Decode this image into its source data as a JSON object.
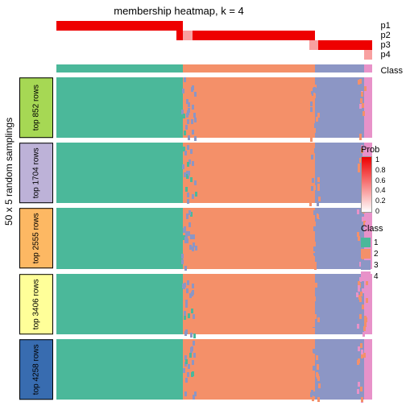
{
  "title": "membership heatmap, k = 4",
  "ylabel": "50 x 5 random samplings",
  "p_labels": [
    "p1",
    "p2",
    "p3",
    "p4"
  ],
  "class_label": "Class",
  "colors": {
    "c1": "#4bb89a",
    "c2": "#f49069",
    "c3": "#8c96c5",
    "c4": "#e892c9",
    "prob_high": "#ee0000",
    "prob_mid": "#f8a0a0",
    "prob_low": "#ffffff",
    "white": "#ffffff"
  },
  "class_bar": [
    {
      "from": 0,
      "to": 0.4,
      "c": "c1"
    },
    {
      "from": 0.4,
      "to": 0.82,
      "c": "c2"
    },
    {
      "from": 0.82,
      "to": 0.975,
      "c": "c3"
    },
    {
      "from": 0.975,
      "to": 1.0,
      "c": "c4"
    }
  ],
  "p_rows": [
    [
      {
        "from": 0,
        "to": 0.4,
        "c": "prob_high"
      }
    ],
    [
      {
        "from": 0.38,
        "to": 0.82,
        "c": "prob_high"
      },
      {
        "from": 0.4,
        "to": 0.43,
        "c": "prob_mid"
      }
    ],
    [
      {
        "from": 0.82,
        "to": 1.0,
        "c": "prob_high"
      },
      {
        "from": 0.8,
        "to": 0.83,
        "c": "prob_mid"
      }
    ],
    [
      {
        "from": 0.975,
        "to": 1.0,
        "c": "prob_mid"
      }
    ]
  ],
  "blocks": [
    {
      "label": "top 852 rows",
      "color": "#a6d854"
    },
    {
      "label": "top 1704 rows",
      "color": "#bdb2d8"
    },
    {
      "label": "top 2555 rows",
      "color": "#fdb863"
    },
    {
      "label": "top 3406 rows",
      "color": "#ffff99"
    },
    {
      "label": "top 4258 rows",
      "color": "#386cb0"
    }
  ],
  "block_bg": [
    {
      "from": 0,
      "to": 0.4,
      "c": "c1"
    },
    {
      "from": 0.4,
      "to": 0.82,
      "c": "c2"
    },
    {
      "from": 0.82,
      "to": 0.975,
      "c": "c3"
    },
    {
      "from": 0.975,
      "to": 1.0,
      "c": "c4"
    }
  ],
  "noise": {
    "speck_count_per_block": 55,
    "regions": [
      {
        "from": 0.395,
        "to": 0.44,
        "c": "c3",
        "weight": 3
      },
      {
        "from": 0.4,
        "to": 0.44,
        "c": "c1",
        "weight": 1
      },
      {
        "from": 0.8,
        "to": 0.83,
        "c": "c2",
        "weight": 2
      },
      {
        "from": 0.8,
        "to": 0.84,
        "c": "c3",
        "weight": 2
      },
      {
        "from": 0.95,
        "to": 0.98,
        "c": "c2",
        "weight": 2
      },
      {
        "from": 0.95,
        "to": 0.98,
        "c": "c4",
        "weight": 1
      }
    ]
  },
  "prob_legend": {
    "title": "Prob",
    "ticks": [
      {
        "v": "1",
        "p": 0
      },
      {
        "v": "0.8",
        "p": 0.2
      },
      {
        "v": "0.6",
        "p": 0.4
      },
      {
        "v": "0.4",
        "p": 0.6
      },
      {
        "v": "0.2",
        "p": 0.8
      },
      {
        "v": "0",
        "p": 1.0
      }
    ]
  },
  "class_legend": {
    "title": "Class",
    "items": [
      {
        "label": "1",
        "c": "c1"
      },
      {
        "label": "2",
        "c": "c2"
      },
      {
        "label": "3",
        "c": "c3"
      },
      {
        "label": "4",
        "c": "c4"
      }
    ]
  }
}
